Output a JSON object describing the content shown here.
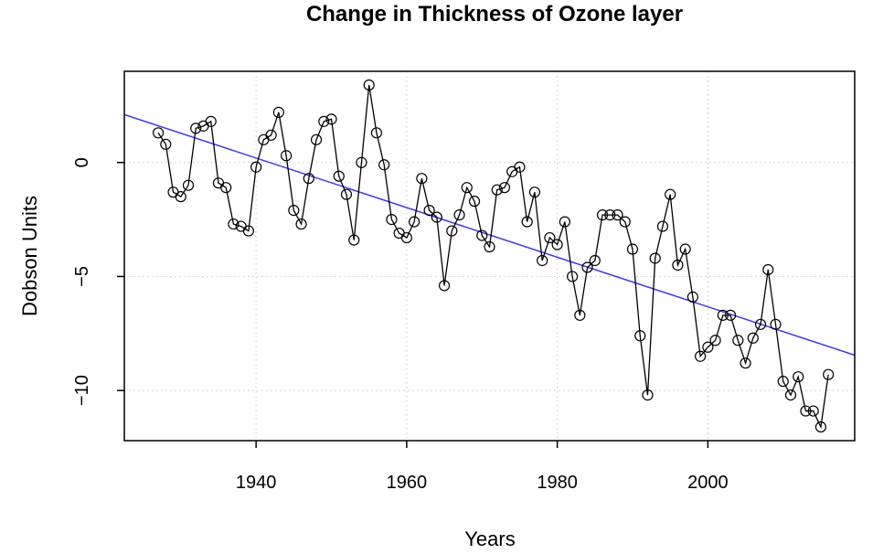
{
  "chart_data": {
    "type": "line",
    "title": "Change in Thickness of Ozone layer",
    "xlabel": "Years",
    "ylabel": "Dobson Units",
    "xlim": [
      1922.5,
      2019.5
    ],
    "ylim": [
      -12.2,
      4.0
    ],
    "xticks": [
      1940,
      1960,
      1980,
      2000
    ],
    "yticks": [
      0,
      -5,
      -10
    ],
    "xtick_labels": [
      "1940",
      "1960",
      "1980",
      "2000"
    ],
    "ytick_labels": [
      "0",
      "−5",
      "−10"
    ],
    "grid": true,
    "series": [
      {
        "marker": "open-circle",
        "color": "#000000",
        "x": [
          1927,
          1928,
          1929,
          1930,
          1931,
          1932,
          1933,
          1934,
          1935,
          1936,
          1937,
          1938,
          1939,
          1940,
          1941,
          1942,
          1943,
          1944,
          1945,
          1946,
          1947,
          1948,
          1949,
          1950,
          1951,
          1952,
          1953,
          1954,
          1955,
          1956,
          1957,
          1958,
          1959,
          1960,
          1961,
          1962,
          1963,
          1964,
          1965,
          1966,
          1967,
          1968,
          1969,
          1970,
          1971,
          1972,
          1973,
          1974,
          1975,
          1976,
          1977,
          1978,
          1979,
          1980,
          1981,
          1982,
          1983,
          1984,
          1985,
          1986,
          1987,
          1988,
          1989,
          1990,
          1991,
          1992,
          1993,
          1994,
          1995,
          1996,
          1997,
          1998,
          1999,
          2000,
          2001,
          2002,
          2003,
          2004,
          2005,
          2006,
          2007,
          2008,
          2009,
          2010,
          2011,
          2012,
          2013,
          2014,
          2015,
          2016
        ],
        "y": [
          1.3,
          0.8,
          -1.3,
          -1.5,
          -1.0,
          1.5,
          1.6,
          1.8,
          -0.9,
          -1.1,
          -2.7,
          -2.8,
          -3.0,
          -0.2,
          1.0,
          1.2,
          2.2,
          0.3,
          -2.1,
          -2.7,
          -0.7,
          1.0,
          1.8,
          1.9,
          -0.6,
          -1.4,
          -3.4,
          0.0,
          3.4,
          1.3,
          -0.1,
          -2.5,
          -3.1,
          -3.3,
          -2.6,
          -0.7,
          -2.1,
          -2.4,
          -5.4,
          -3.0,
          -2.3,
          -1.1,
          -1.7,
          -3.2,
          -3.7,
          -1.2,
          -1.1,
          -0.4,
          -0.2,
          -2.6,
          -1.3,
          -4.3,
          -3.3,
          -3.6,
          -2.6,
          -5.0,
          -6.7,
          -4.6,
          -4.3,
          -2.3,
          -2.3,
          -2.3,
          -2.6,
          -3.8,
          -7.6,
          -10.2,
          -4.2,
          -2.8,
          -1.4,
          -4.5,
          -3.8,
          -5.9,
          -8.5,
          -8.1,
          -7.8,
          -6.7,
          -6.7,
          -7.8,
          -8.8,
          -7.7,
          -7.1,
          -4.7,
          -7.1,
          -9.6,
          -10.2,
          -9.4,
          -10.9,
          -10.9,
          -11.6,
          -9.3
        ]
      }
    ],
    "trend_line": {
      "color": "#3b3be8",
      "x": [
        1922.5,
        2019.5
      ],
      "y": [
        2.1,
        -8.45
      ]
    }
  }
}
